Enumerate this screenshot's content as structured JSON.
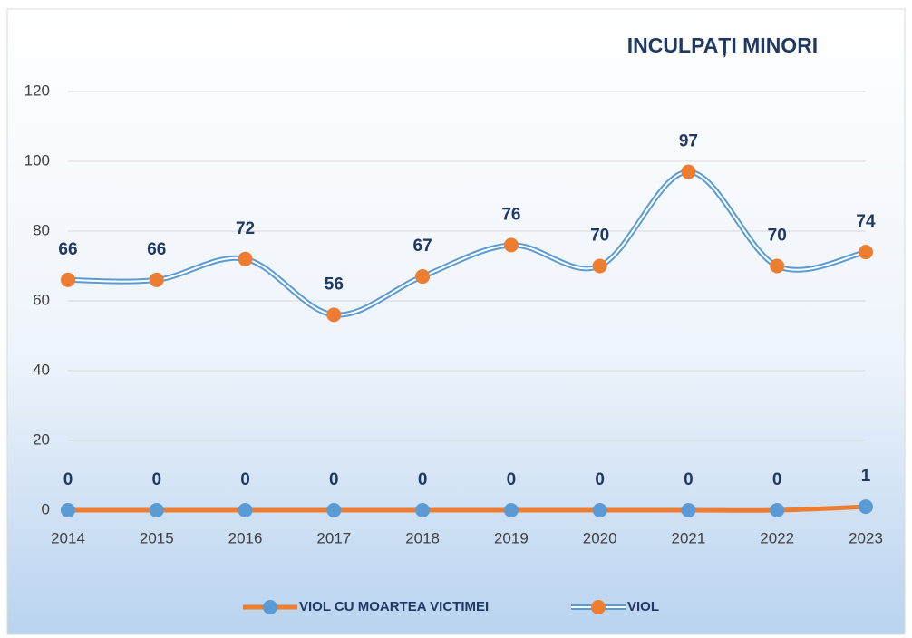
{
  "chart_data": {
    "type": "line",
    "title": "INCULPAȚI MINORI",
    "categories": [
      "2014",
      "2015",
      "2016",
      "2017",
      "2018",
      "2019",
      "2020",
      "2021",
      "2022",
      "2023"
    ],
    "series": [
      {
        "name": "VIOL CU MOARTEA VICTIMEI",
        "color": "#ed7d31",
        "marker_color": "#5b9bd5",
        "values": [
          0,
          0,
          0,
          0,
          0,
          0,
          0,
          0,
          0,
          1
        ]
      },
      {
        "name": "VIOL",
        "color": "#5b9bd5",
        "marker_color": "#ed7d31",
        "values": [
          66,
          66,
          72,
          56,
          67,
          76,
          70,
          97,
          70,
          74
        ]
      }
    ],
    "ylim": [
      0,
      120
    ],
    "yticks": [
      0,
      20,
      40,
      60,
      80,
      100,
      120
    ],
    "grid": true,
    "legend": "bottom"
  }
}
